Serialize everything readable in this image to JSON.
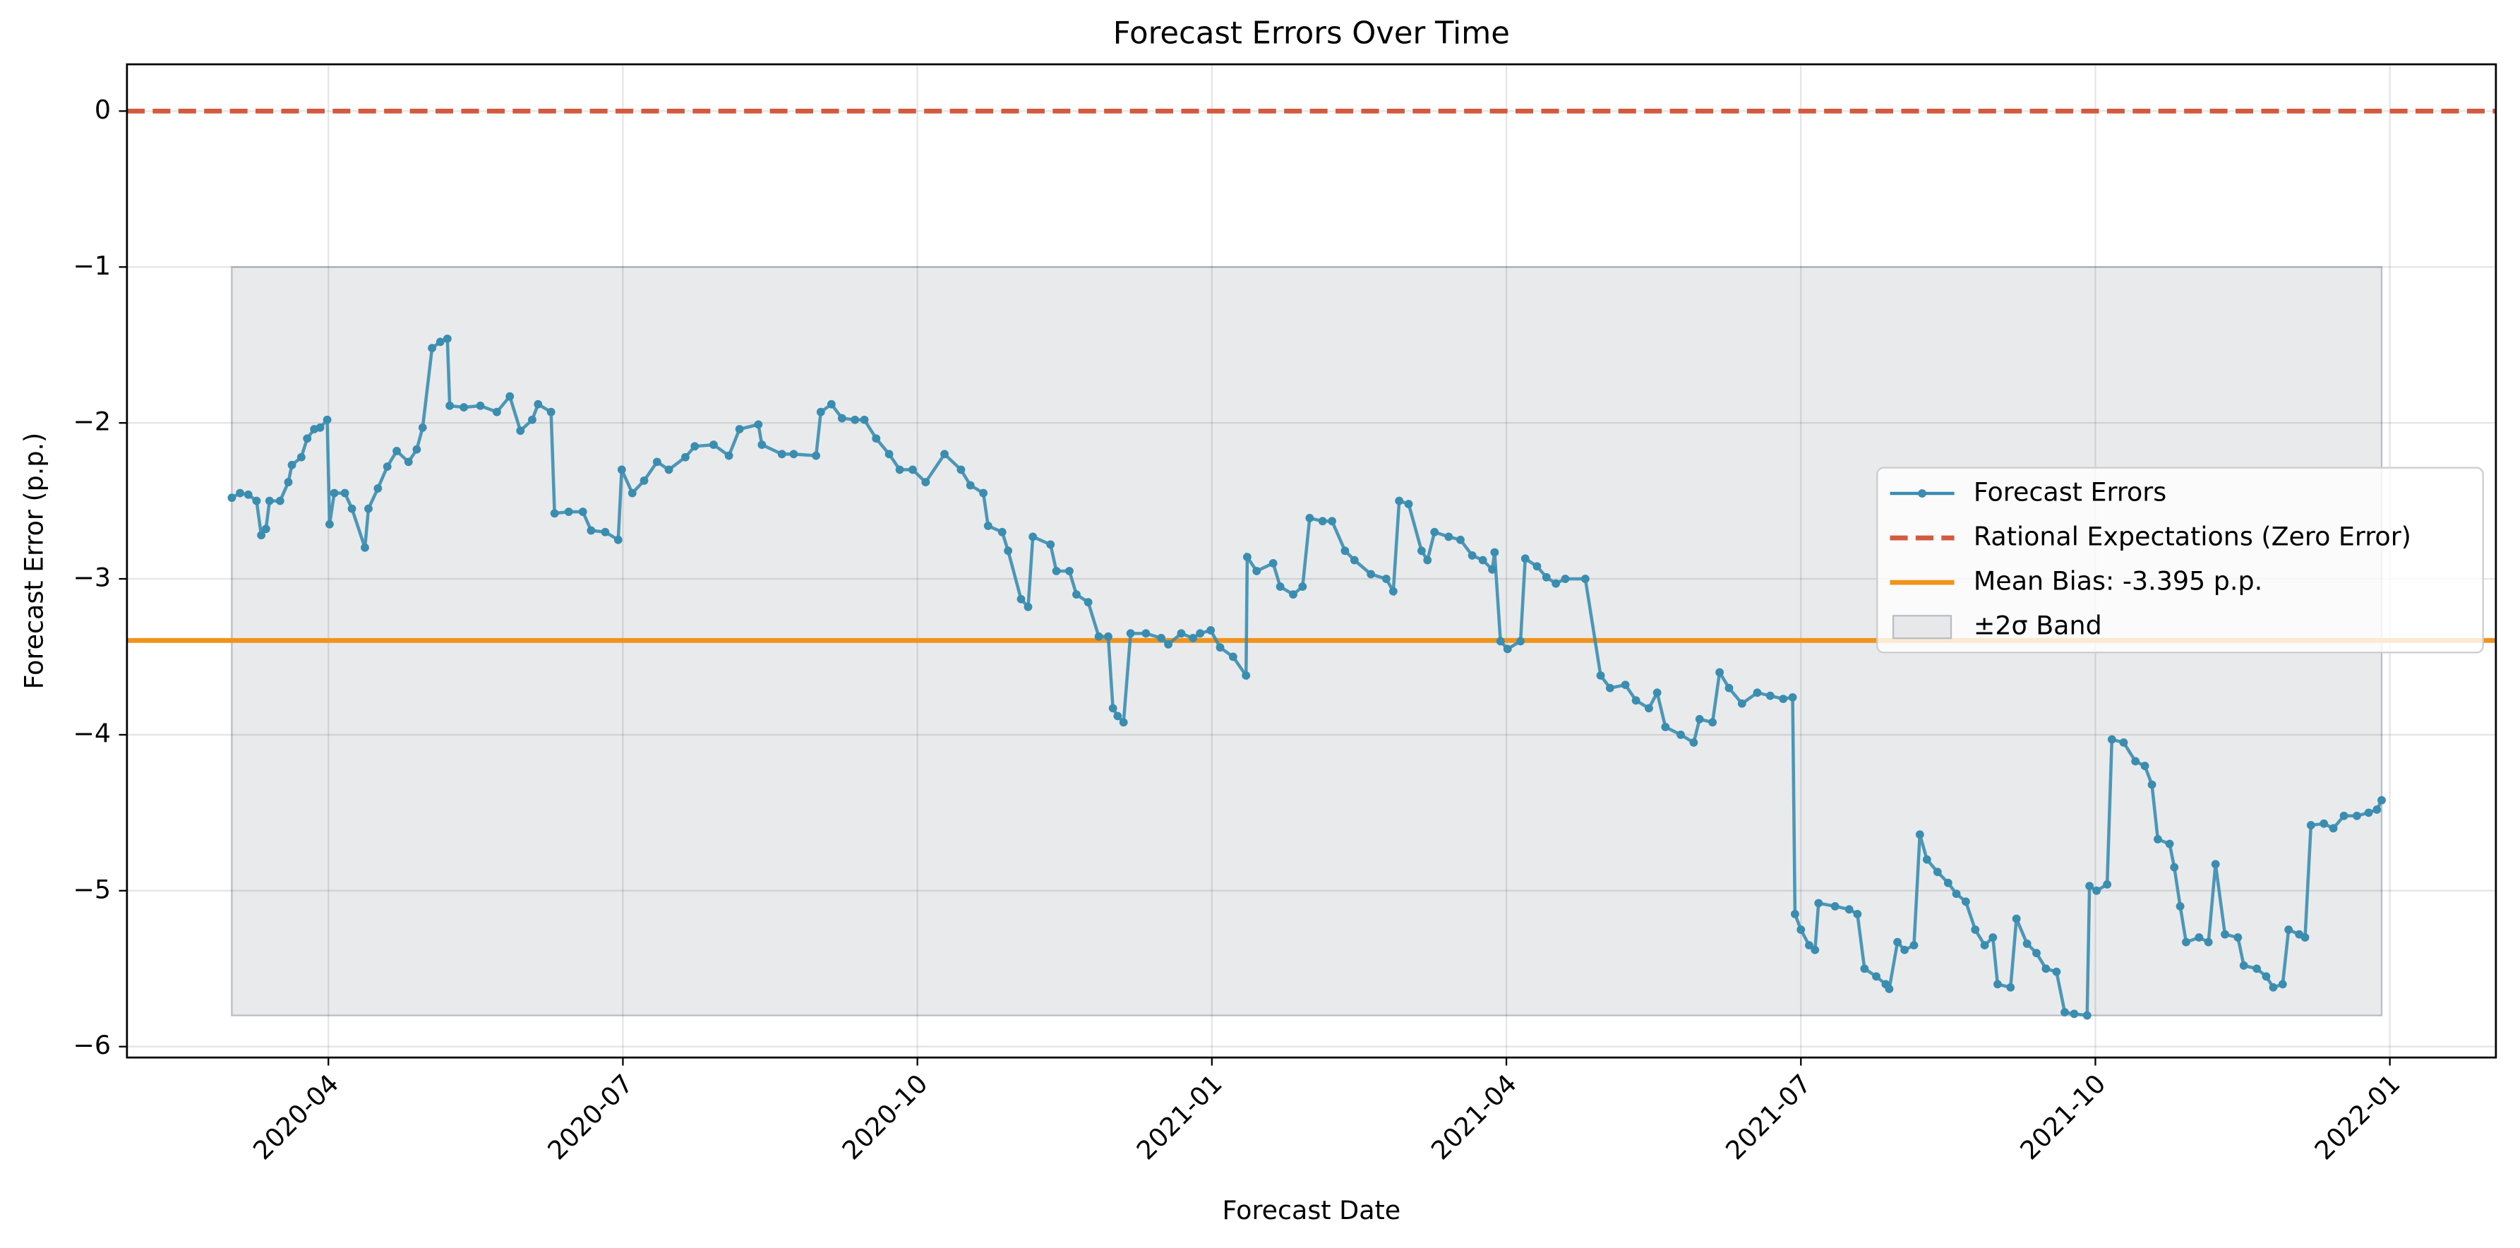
{
  "chart_data": {
    "type": "line",
    "title": "Forecast Errors Over Time",
    "xlabel": "Forecast Date",
    "ylabel": "Forecast Error (p.p.)",
    "xlim": [
      2020.079,
      2022.09
    ],
    "ylim": [
      -6.07,
      0.3
    ],
    "xticks": [
      {
        "value": 2020.25,
        "label": "2020-04"
      },
      {
        "value": 2020.5,
        "label": "2020-07"
      },
      {
        "value": 2020.75,
        "label": "2020-10"
      },
      {
        "value": 2021.0,
        "label": "2021-01"
      },
      {
        "value": 2021.25,
        "label": "2021-04"
      },
      {
        "value": 2021.5,
        "label": "2021-07"
      },
      {
        "value": 2021.75,
        "label": "2021-10"
      },
      {
        "value": 2022.0,
        "label": "2022-01"
      }
    ],
    "yticks": [
      0,
      {
        "value": -1,
        "label": "−1"
      },
      {
        "value": -2,
        "label": "−2"
      },
      {
        "value": -3,
        "label": "−3"
      },
      {
        "value": -4,
        "label": "−4"
      },
      {
        "value": -5,
        "label": "−5"
      },
      {
        "value": -6,
        "label": "−6"
      }
    ],
    "grid": true,
    "legend": "right",
    "band": {
      "name": "±2σ Band",
      "color": "#d5d9dd",
      "x": [
        2020.168,
        2021.993
      ],
      "y": [
        -5.8,
        -1
      ]
    },
    "reference_lines": [
      {
        "name": "Rational Expectations (Zero Error)",
        "value": 0,
        "color": "#d35a3f",
        "dashed": true
      },
      {
        "name": "Mean Bias: -3.395 p.p.",
        "value": -3.395,
        "color": "#f0931c",
        "dashed": false
      }
    ],
    "series": [
      {
        "name": "Forecast Errors",
        "color": "#3b8db0",
        "x": [
          2020.168,
          2020.175,
          2020.182,
          2020.189,
          2020.193,
          2020.197,
          2020.2,
          2020.209,
          2020.216,
          2020.219,
          2020.227,
          2020.232,
          2020.238,
          2020.243,
          2020.249,
          2020.251,
          2020.255,
          2020.264,
          2020.27,
          2020.281,
          2020.284,
          2020.292,
          2020.3,
          2020.308,
          2020.318,
          2020.325,
          2020.33,
          2020.338,
          2020.345,
          2020.351,
          2020.353,
          2020.365,
          2020.379,
          2020.393,
          2020.404,
          2020.413,
          2020.423,
          2020.428,
          2020.439,
          2020.442,
          2020.454,
          2020.466,
          2020.473,
          2020.485,
          2020.496,
          2020.499,
          2020.508,
          2020.518,
          2020.529,
          2020.539,
          2020.553,
          2020.561,
          2020.577,
          2020.59,
          2020.599,
          2020.615,
          2020.618,
          2020.635,
          2020.645,
          2020.664,
          2020.668,
          2020.677,
          2020.686,
          2020.697,
          2020.705,
          2020.715,
          2020.726,
          2020.735,
          2020.746,
          2020.757,
          2020.773,
          2020.787,
          2020.795,
          2020.806,
          2020.81,
          2020.822,
          2020.827,
          2020.838,
          2020.844,
          2020.848,
          2020.863,
          2020.868,
          2020.879,
          2020.885,
          2020.895,
          2020.904,
          2020.912,
          2020.916,
          2020.92,
          2020.925,
          2020.931,
          2020.944,
          2020.957,
          2020.963,
          2020.974,
          2020.984,
          2020.99,
          2020.999,
          2021.007,
          2021.018,
          2021.029,
          2021.03,
          2021.038,
          2021.052,
          2021.058,
          2021.069,
          2021.077,
          2021.083,
          2021.094,
          2021.102,
          2021.113,
          2021.121,
          2021.135,
          2021.148,
          2021.154,
          2021.159,
          2021.167,
          2021.178,
          2021.183,
          2021.189,
          2021.201,
          2021.211,
          2021.221,
          2021.23,
          2021.238,
          2021.24,
          2021.245,
          2021.251,
          2021.262,
          2021.266,
          2021.276,
          2021.284,
          2021.292,
          2021.3,
          2021.317,
          2021.33,
          2021.338,
          2021.351,
          2021.36,
          2021.371,
          2021.378,
          2021.385,
          2021.398,
          2021.409,
          2021.414,
          2021.425,
          2021.431,
          2021.439,
          2021.45,
          2021.463,
          2021.474,
          2021.485,
          2021.493,
          2021.495,
          2021.5,
          2021.507,
          2021.512,
          2021.515,
          2021.529,
          2021.541,
          2021.548,
          2021.554,
          2021.564,
          2021.572,
          2021.575,
          2021.582,
          2021.588,
          2021.596,
          2021.601,
          2021.607,
          2021.616,
          2021.625,
          2021.632,
          2021.64,
          2021.648,
          2021.656,
          2021.663,
          2021.667,
          2021.678,
          2021.683,
          2021.692,
          2021.7,
          2021.708,
          2021.717,
          2021.724,
          2021.732,
          2021.743,
          2021.745,
          2021.751,
          2021.76,
          2021.764,
          2021.774,
          2021.784,
          2021.792,
          2021.798,
          2021.803,
          2021.813,
          2021.817,
          2021.822,
          2021.827,
          2021.838,
          2021.846,
          2021.852,
          2021.86,
          2021.871,
          2021.876,
          2021.887,
          2021.895,
          2021.901,
          2021.909,
          2021.914,
          2021.923,
          2021.928,
          2021.933,
          2021.944,
          2021.952,
          2021.961,
          2021.972,
          2021.982,
          2021.989,
          2021.993
        ],
        "values": [
          -2.48,
          -2.45,
          -2.46,
          -2.5,
          -2.72,
          -2.68,
          -2.5,
          -2.5,
          -2.38,
          -2.27,
          -2.22,
          -2.1,
          -2.04,
          -2.03,
          -1.98,
          -2.65,
          -2.45,
          -2.45,
          -2.55,
          -2.8,
          -2.55,
          -2.42,
          -2.28,
          -2.18,
          -2.25,
          -2.17,
          -2.03,
          -1.52,
          -1.48,
          -1.46,
          -1.89,
          -1.9,
          -1.89,
          -1.93,
          -1.83,
          -2.05,
          -1.98,
          -1.88,
          -1.93,
          -2.58,
          -2.57,
          -2.57,
          -2.69,
          -2.7,
          -2.75,
          -2.3,
          -2.45,
          -2.37,
          -2.25,
          -2.3,
          -2.22,
          -2.15,
          -2.14,
          -2.21,
          -2.04,
          -2.01,
          -2.14,
          -2.2,
          -2.2,
          -2.21,
          -1.93,
          -1.88,
          -1.97,
          -1.98,
          -1.98,
          -2.1,
          -2.2,
          -2.3,
          -2.3,
          -2.38,
          -2.2,
          -2.3,
          -2.4,
          -2.45,
          -2.66,
          -2.7,
          -2.82,
          -3.13,
          -3.18,
          -2.73,
          -2.78,
          -2.95,
          -2.95,
          -3.1,
          -3.15,
          -3.37,
          -3.37,
          -3.83,
          -3.88,
          -3.92,
          -3.35,
          -3.35,
          -3.38,
          -3.42,
          -3.35,
          -3.38,
          -3.35,
          -3.33,
          -3.44,
          -3.5,
          -3.62,
          -2.86,
          -2.95,
          -2.9,
          -3.05,
          -3.1,
          -3.05,
          -2.61,
          -2.63,
          -2.63,
          -2.82,
          -2.88,
          -2.97,
          -3.0,
          -3.08,
          -2.5,
          -2.52,
          -2.82,
          -2.88,
          -2.7,
          -2.73,
          -2.75,
          -2.85,
          -2.88,
          -2.94,
          -2.83,
          -3.4,
          -3.45,
          -3.4,
          -2.87,
          -2.92,
          -2.99,
          -3.03,
          -3.0,
          -3.0,
          -3.62,
          -3.7,
          -3.68,
          -3.78,
          -3.83,
          -3.73,
          -3.95,
          -4.0,
          -4.05,
          -3.9,
          -3.92,
          -3.6,
          -3.7,
          -3.8,
          -3.73,
          -3.75,
          -3.77,
          -3.76,
          -5.15,
          -5.25,
          -5.35,
          -5.38,
          -5.08,
          -5.1,
          -5.12,
          -5.15,
          -5.5,
          -5.55,
          -5.6,
          -5.63,
          -5.33,
          -5.38,
          -5.35,
          -4.64,
          -4.8,
          -4.88,
          -4.95,
          -5.02,
          -5.07,
          -5.25,
          -5.35,
          -5.3,
          -5.6,
          -5.62,
          -5.18,
          -5.34,
          -5.4,
          -5.5,
          -5.52,
          -5.78,
          -5.79,
          -5.8,
          -4.97,
          -5.0,
          -4.96,
          -4.03,
          -4.05,
          -4.17,
          -4.2,
          -4.32,
          -4.67,
          -4.7,
          -4.85,
          -5.1,
          -5.33,
          -5.3,
          -5.33,
          -4.83,
          -5.28,
          -5.3,
          -5.48,
          -5.5,
          -5.55,
          -5.62,
          -5.6,
          -5.25,
          -5.28,
          -5.3,
          -4.58,
          -4.57,
          -4.6,
          -4.52,
          -4.52,
          -4.5,
          -4.48,
          -4.42
        ]
      }
    ]
  }
}
